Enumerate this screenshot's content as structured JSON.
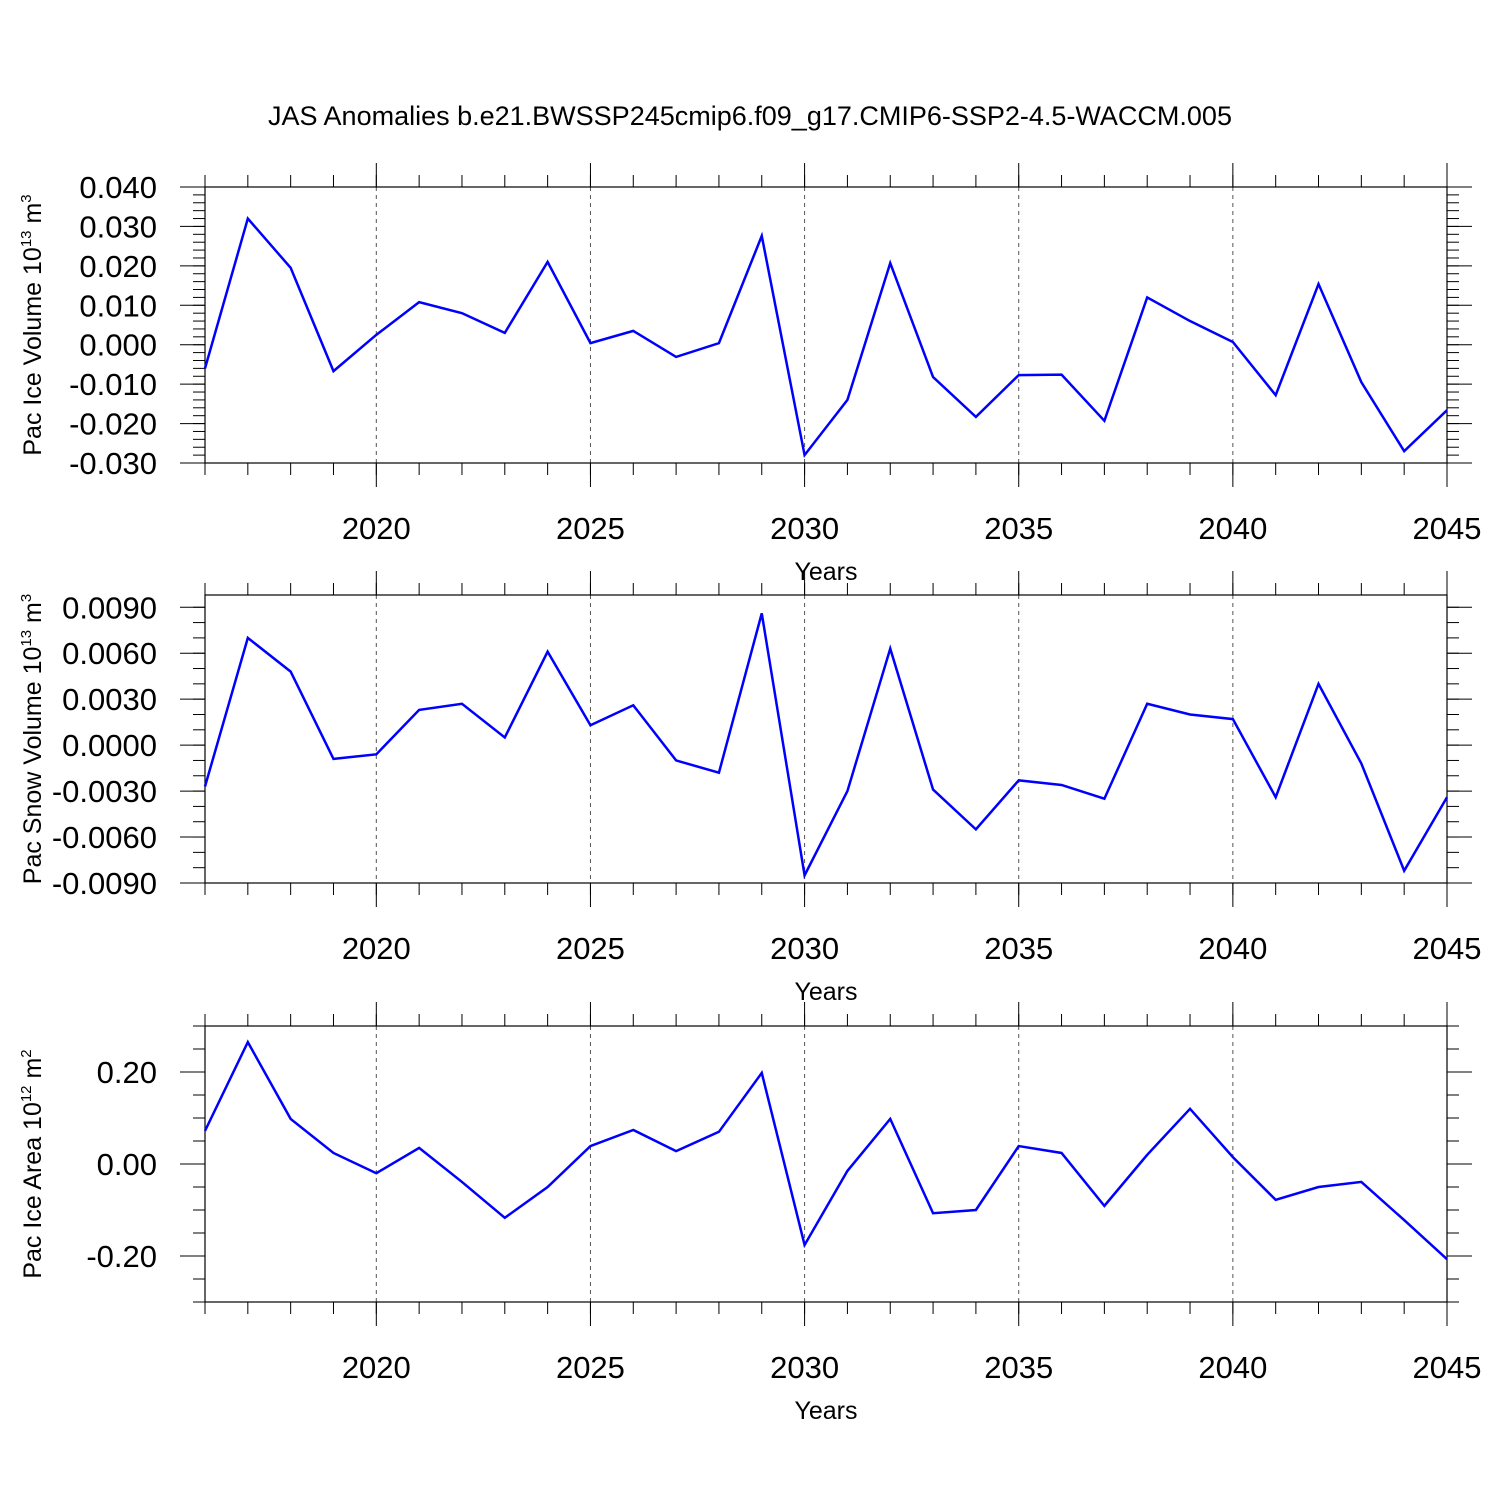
{
  "title": "JAS Anomalies b.e21.BWSSP245cmip6.f09_g17.CMIP6-SSP2-4.5-WACCM.005",
  "chart_data": [
    {
      "type": "line",
      "ylabel": [
        "Pac Ice Volume 10",
        "13",
        " m",
        "3"
      ],
      "xlabel": "Years",
      "x": [
        2016,
        2017,
        2018,
        2019,
        2020,
        2021,
        2022,
        2023,
        2024,
        2025,
        2026,
        2027,
        2028,
        2029,
        2030,
        2031,
        2032,
        2033,
        2034,
        2035,
        2036,
        2037,
        2038,
        2039,
        2040,
        2041,
        2042,
        2043,
        2044,
        2045
      ],
      "values": [
        -0.006,
        0.032,
        0.0195,
        -0.0067,
        0.0025,
        0.0108,
        0.008,
        0.003,
        0.021,
        0.0004,
        0.0035,
        -0.0031,
        0.0004,
        0.0276,
        -0.028,
        -0.014,
        0.0207,
        -0.0082,
        -0.0183,
        -0.0077,
        -0.0076,
        -0.0193,
        0.012,
        0.006,
        0.0007,
        -0.0128,
        0.0154,
        -0.0095,
        -0.027,
        -0.0166
      ],
      "color": "#0000ff",
      "xlim": [
        2016,
        2045
      ],
      "xticks": [
        2020,
        2025,
        2030,
        2035,
        2040,
        2045
      ],
      "xminor_step": 1,
      "ylim": [
        -0.03,
        0.04
      ],
      "yticks": [
        {
          "value": -0.03,
          "label": "-0.030"
        },
        {
          "value": -0.02,
          "label": "-0.020"
        },
        {
          "value": -0.01,
          "label": "-0.010"
        },
        {
          "value": 0,
          "label": "0.000"
        },
        {
          "value": 0.01,
          "label": "0.010"
        },
        {
          "value": 0.02,
          "label": "0.020"
        },
        {
          "value": 0.03,
          "label": "0.030"
        },
        {
          "value": 0.04,
          "label": "0.040"
        }
      ],
      "yminor_step": 0.002,
      "grid": "x-dashed"
    },
    {
      "type": "line",
      "ylabel": [
        "Pac Snow Volume 10",
        "13",
        " m",
        "3"
      ],
      "xlabel": "Years",
      "x": [
        2016,
        2017,
        2018,
        2019,
        2020,
        2021,
        2022,
        2023,
        2024,
        2025,
        2026,
        2027,
        2028,
        2029,
        2030,
        2031,
        2032,
        2033,
        2034,
        2035,
        2036,
        2037,
        2038,
        2039,
        2040,
        2041,
        2042,
        2043,
        2044,
        2045
      ],
      "values": [
        -0.0027,
        0.007,
        0.0048,
        -0.0009,
        -0.0006,
        0.0023,
        0.0027,
        0.0005,
        0.0061,
        0.0013,
        0.0026,
        -0.001,
        -0.0018,
        0.0086,
        -0.0085,
        -0.003,
        0.0063,
        -0.0029,
        -0.0055,
        -0.0023,
        -0.0026,
        -0.0035,
        0.0027,
        0.002,
        0.0017,
        -0.0034,
        0.004,
        -0.0012,
        -0.0082,
        -0.0034
      ],
      "color": "#0000ff",
      "xlim": [
        2016,
        2045
      ],
      "xticks": [
        2020,
        2025,
        2030,
        2035,
        2040,
        2045
      ],
      "xminor_step": 1,
      "ylim": [
        -0.009,
        0.0098
      ],
      "yticks": [
        {
          "value": -0.009,
          "label": "-0.0090"
        },
        {
          "value": -0.006,
          "label": "-0.0060"
        },
        {
          "value": -0.003,
          "label": "-0.0030"
        },
        {
          "value": 0,
          "label": "0.0000"
        },
        {
          "value": 0.003,
          "label": "0.0030"
        },
        {
          "value": 0.006,
          "label": "0.0060"
        },
        {
          "value": 0.009,
          "label": "0.0090"
        }
      ],
      "yminor_step": 0.001,
      "grid": "x-dashed"
    },
    {
      "type": "line",
      "ylabel": [
        "Pac Ice Area 10",
        "12",
        " m",
        "2"
      ],
      "xlabel": "Years",
      "x": [
        2016,
        2017,
        2018,
        2019,
        2020,
        2021,
        2022,
        2023,
        2024,
        2025,
        2026,
        2027,
        2028,
        2029,
        2030,
        2031,
        2032,
        2033,
        2034,
        2035,
        2036,
        2037,
        2038,
        2039,
        2040,
        2041,
        2042,
        2043,
        2044,
        2045
      ],
      "values": [
        0.072,
        0.265,
        0.098,
        0.024,
        -0.02,
        0.035,
        -0.039,
        -0.117,
        -0.05,
        0.039,
        0.074,
        0.028,
        0.07,
        0.198,
        -0.176,
        -0.015,
        0.098,
        -0.107,
        -0.1,
        0.039,
        0.024,
        -0.091,
        0.02,
        0.12,
        0.015,
        -0.078,
        -0.05,
        -0.039,
        -0.122,
        -0.207
      ],
      "color": "#0000ff",
      "xlim": [
        2016,
        2045
      ],
      "xticks": [
        2020,
        2025,
        2030,
        2035,
        2040,
        2045
      ],
      "xminor_step": 1,
      "ylim": [
        -0.3,
        0.3
      ],
      "yticks": [
        {
          "value": -0.2,
          "label": "-0.20"
        },
        {
          "value": 0,
          "label": "0.00"
        },
        {
          "value": 0.2,
          "label": "0.20"
        }
      ],
      "yminor_step": 0.05,
      "grid": "x-dashed"
    }
  ]
}
